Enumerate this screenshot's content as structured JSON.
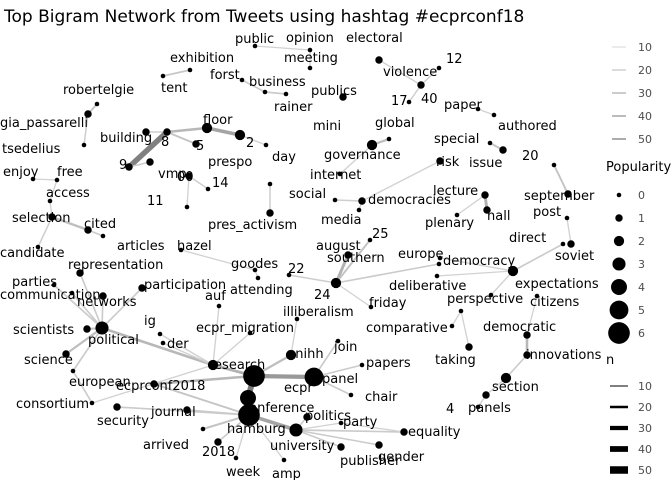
{
  "chart_data": {
    "type": "network",
    "title": "Top Bigram Network from Tweets using hashtag #ecprconf18",
    "legend_edge_alpha": {
      "values": [
        "10",
        "20",
        "30",
        "40",
        "50"
      ]
    },
    "legend_popularity": {
      "title": "Popularity",
      "values": [
        "0",
        "1",
        "2",
        "3",
        "4",
        "5",
        "6"
      ]
    },
    "legend_n": {
      "title": "n",
      "values": [
        "10",
        "20",
        "30",
        "40",
        "50"
      ]
    },
    "nodes": [
      {
        "id": "public",
        "pop": 0
      },
      {
        "id": "opinion",
        "pop": 0
      },
      {
        "id": "electoral",
        "pop": 0
      },
      {
        "id": "meeting",
        "pop": 0
      },
      {
        "id": "violence",
        "pop": 1
      },
      {
        "id": "exhibition",
        "pop": 0
      },
      {
        "id": "tent",
        "pop": 0
      },
      {
        "id": "forst",
        "pop": 0
      },
      {
        "id": "business",
        "pop": 0
      },
      {
        "id": "12",
        "pop": 0
      },
      {
        "id": "rainer",
        "pop": 0
      },
      {
        "id": "robertelgie",
        "pop": 0
      },
      {
        "id": "publics",
        "pop": 1
      },
      {
        "id": "17",
        "pop": 0
      },
      {
        "id": "40",
        "pop": 1
      },
      {
        "id": "paper",
        "pop": 0
      },
      {
        "id": "gia_passarelli",
        "pop": 1
      },
      {
        "id": "mini",
        "pop": 0
      },
      {
        "id": "authored",
        "pop": 0
      },
      {
        "id": "global",
        "pop": 0
      },
      {
        "id": "floor",
        "pop": 2
      },
      {
        "id": "tsedelius",
        "pop": 0
      },
      {
        "id": "building",
        "pop": 1
      },
      {
        "id": "8",
        "pop": 1
      },
      {
        "id": "2",
        "pop": 2
      },
      {
        "id": "special",
        "pop": 0
      },
      {
        "id": "5",
        "pop": 1
      },
      {
        "id": "day",
        "pop": 0
      },
      {
        "id": "9",
        "pop": 1
      },
      {
        "id": "governance",
        "pop": 2
      },
      {
        "id": "issue",
        "pop": 1
      },
      {
        "id": "vmp",
        "pop": 1
      },
      {
        "id": "risk",
        "pop": 1
      },
      {
        "id": "20",
        "pop": 0
      },
      {
        "id": "enjoy",
        "pop": 0
      },
      {
        "id": "free",
        "pop": 0
      },
      {
        "id": "internet",
        "pop": 0
      },
      {
        "id": "00",
        "pop": 1
      },
      {
        "id": "14",
        "pop": 0
      },
      {
        "id": "prespo",
        "pop": 0
      },
      {
        "id": "september",
        "pop": 1
      },
      {
        "id": "access",
        "pop": 0
      },
      {
        "id": "social",
        "pop": 0
      },
      {
        "id": "democracies",
        "pop": 1
      },
      {
        "id": "lecture",
        "pop": 1
      },
      {
        "id": "11",
        "pop": 0
      },
      {
        "id": "media",
        "pop": 0
      },
      {
        "id": "hall",
        "pop": 1
      },
      {
        "id": "post",
        "pop": 0
      },
      {
        "id": "selection",
        "pop": 1
      },
      {
        "id": "cited",
        "pop": 1
      },
      {
        "id": "pres_activism",
        "pop": 1
      },
      {
        "id": "plenary",
        "pop": 0
      },
      {
        "id": "25",
        "pop": 0
      },
      {
        "id": "soviet",
        "pop": 1
      },
      {
        "id": "articles",
        "pop": 0
      },
      {
        "id": "direct",
        "pop": 0
      },
      {
        "id": "candidate",
        "pop": 0
      },
      {
        "id": "hazel",
        "pop": 0
      },
      {
        "id": "august",
        "pop": 1
      },
      {
        "id": "europe",
        "pop": 0
      },
      {
        "id": "democracy",
        "pop": 2
      },
      {
        "id": "goodes",
        "pop": 0
      },
      {
        "id": "22",
        "pop": 0
      },
      {
        "id": "southern",
        "pop": 0
      },
      {
        "id": "representation",
        "pop": 1
      },
      {
        "id": "attending",
        "pop": 0
      },
      {
        "id": "24",
        "pop": 2
      },
      {
        "id": "deliberative",
        "pop": 0
      },
      {
        "id": "expectations",
        "pop": 0
      },
      {
        "id": "parties",
        "pop": 0
      },
      {
        "id": "participation",
        "pop": 1
      },
      {
        "id": "friday",
        "pop": 0
      },
      {
        "id": "communication",
        "pop": 0
      },
      {
        "id": "networks",
        "pop": 1
      },
      {
        "id": "auf",
        "pop": 0
      },
      {
        "id": "citizens",
        "pop": 0
      },
      {
        "id": "illiberalism",
        "pop": 0
      },
      {
        "id": "perspective",
        "pop": 0
      },
      {
        "id": "scientists",
        "pop": 1
      },
      {
        "id": "political",
        "pop": 3
      },
      {
        "id": "comparative",
        "pop": 0
      },
      {
        "id": "ig",
        "pop": 0
      },
      {
        "id": "ecpr_migration",
        "pop": 0
      },
      {
        "id": "der",
        "pop": 0
      },
      {
        "id": "democratic",
        "pop": 1
      },
      {
        "id": "join",
        "pop": 0
      },
      {
        "id": "science",
        "pop": 1
      },
      {
        "id": "research",
        "pop": 2
      },
      {
        "id": "unihh",
        "pop": 2
      },
      {
        "id": "taking",
        "pop": 1
      },
      {
        "id": "innovations",
        "pop": 1
      },
      {
        "id": "papers",
        "pop": 0
      },
      {
        "id": "european",
        "pop": 0
      },
      {
        "id": "ecpr",
        "pop": 6
      },
      {
        "id": "panel",
        "pop": 5
      },
      {
        "id": "ecprconf2018",
        "pop": 1
      },
      {
        "id": "section",
        "pop": 2
      },
      {
        "id": "consortium",
        "pop": 0
      },
      {
        "id": "conference",
        "pop": 4
      },
      {
        "id": "chair",
        "pop": 0
      },
      {
        "id": "4",
        "pop": 0
      },
      {
        "id": "panels",
        "pop": 1
      },
      {
        "id": "security",
        "pop": 1
      },
      {
        "id": "journal",
        "pop": 1
      },
      {
        "id": "politics",
        "pop": 1
      },
      {
        "id": "hamburg",
        "pop": 6
      },
      {
        "id": "party",
        "pop": 0
      },
      {
        "id": "arrived",
        "pop": 0
      },
      {
        "id": "university",
        "pop": 3
      },
      {
        "id": "equality",
        "pop": 1
      },
      {
        "id": "2018",
        "pop": 1
      },
      {
        "id": "gender",
        "pop": 1
      },
      {
        "id": "publisher",
        "pop": 1
      },
      {
        "id": "week",
        "pop": 0
      },
      {
        "id": "amp",
        "pop": 0
      }
    ],
    "edges": [
      {
        "from": "public",
        "to": "opinion",
        "n": 12
      },
      {
        "from": "electoral",
        "to": "violence",
        "n": 14
      },
      {
        "from": "meeting",
        "to": "opinion",
        "n": 12
      },
      {
        "from": "exhibition",
        "to": "tent",
        "n": 15
      },
      {
        "from": "forst",
        "to": "business",
        "n": 14
      },
      {
        "from": "business",
        "to": "rainer",
        "n": 14
      },
      {
        "from": "12",
        "to": "40",
        "n": 13
      },
      {
        "from": "17",
        "to": "40",
        "n": 13
      },
      {
        "from": "violence",
        "to": "40",
        "n": 12
      },
      {
        "from": "robertelgie",
        "to": "gia_passarelli",
        "n": 16
      },
      {
        "from": "gia_passarelli",
        "to": "tsedelius",
        "n": 13
      },
      {
        "from": "publics",
        "to": "mini",
        "n": 13
      },
      {
        "from": "paper",
        "to": "authored",
        "n": 12
      },
      {
        "from": "global",
        "to": "governance",
        "n": 18
      },
      {
        "from": "governance",
        "to": "internet",
        "n": 12
      },
      {
        "from": "building",
        "to": "8",
        "n": 13
      },
      {
        "from": "8",
        "to": "floor",
        "n": 20
      },
      {
        "from": "floor",
        "to": "2",
        "n": 26
      },
      {
        "from": "8",
        "to": "5",
        "n": 16
      },
      {
        "from": "9",
        "to": "8",
        "n": 38
      },
      {
        "from": "2",
        "to": "day",
        "n": 12
      },
      {
        "from": "9",
        "to": "vmp",
        "n": 13
      },
      {
        "from": "special",
        "to": "issue",
        "n": 16
      },
      {
        "from": "risk",
        "to": "democracies",
        "n": 12
      },
      {
        "from": "social",
        "to": "democracies",
        "n": 13
      },
      {
        "from": "democracies",
        "to": "media",
        "n": 12
      },
      {
        "from": "20",
        "to": "september",
        "n": 16
      },
      {
        "from": "enjoy",
        "to": "free",
        "n": 12
      },
      {
        "from": "free",
        "to": "access",
        "n": 12
      },
      {
        "from": "00",
        "to": "14",
        "n": 13
      },
      {
        "from": "00",
        "to": "11",
        "n": 12
      },
      {
        "from": "prespo",
        "to": "pres_activism",
        "n": 13
      },
      {
        "from": "lecture",
        "to": "hall",
        "n": 22
      },
      {
        "from": "lecture",
        "to": "plenary",
        "n": 12
      },
      {
        "from": "post",
        "to": "soviet",
        "n": 12
      },
      {
        "from": "access",
        "to": "selection",
        "n": 12
      },
      {
        "from": "selection",
        "to": "cited",
        "n": 18
      },
      {
        "from": "cited",
        "to": "articles",
        "n": 14
      },
      {
        "from": "selection",
        "to": "candidate",
        "n": 13
      },
      {
        "from": "direct",
        "to": "democracy",
        "n": 14
      },
      {
        "from": "europe",
        "to": "democracy",
        "n": 12
      },
      {
        "from": "democracy",
        "to": "deliberative",
        "n": 12
      },
      {
        "from": "democracy",
        "to": "expectations",
        "n": 12
      },
      {
        "from": "hazel",
        "to": "goodes",
        "n": 12
      },
      {
        "from": "goodes",
        "to": "attending",
        "n": 12
      },
      {
        "from": "22",
        "to": "24",
        "n": 13
      },
      {
        "from": "august",
        "to": "24",
        "n": 22
      },
      {
        "from": "25",
        "to": "24",
        "n": 16
      },
      {
        "from": "southern",
        "to": "24",
        "n": 14
      },
      {
        "from": "24",
        "to": "friday",
        "n": 12
      },
      {
        "from": "representation",
        "to": "political",
        "n": 14
      },
      {
        "from": "parties",
        "to": "political",
        "n": 14
      },
      {
        "from": "communication",
        "to": "political",
        "n": 14
      },
      {
        "from": "networks",
        "to": "political",
        "n": 14
      },
      {
        "from": "participation",
        "to": "political",
        "n": 14
      },
      {
        "from": "scientists",
        "to": "political",
        "n": 16
      },
      {
        "from": "political",
        "to": "science",
        "n": 18
      },
      {
        "from": "european",
        "to": "political",
        "n": 14
      },
      {
        "from": "political",
        "to": "research",
        "n": 20
      },
      {
        "from": "european",
        "to": "consortium",
        "n": 14
      },
      {
        "from": "citizens",
        "to": "democratic",
        "n": 12
      },
      {
        "from": "perspective",
        "to": "comparative",
        "n": 12
      },
      {
        "from": "perspective",
        "to": "taking",
        "n": 12
      },
      {
        "from": "democratic",
        "to": "innovations",
        "n": 20
      },
      {
        "from": "innovations",
        "to": "section",
        "n": 14
      },
      {
        "from": "section",
        "to": "panels",
        "n": 12
      },
      {
        "from": "4",
        "to": "panels",
        "n": 12
      },
      {
        "from": "auf",
        "to": "research",
        "n": 12
      },
      {
        "from": "ig",
        "to": "research",
        "n": 12
      },
      {
        "from": "der",
        "to": "research",
        "n": 12
      },
      {
        "from": "ecpr_migration",
        "to": "research",
        "n": 12
      },
      {
        "from": "illiberalism",
        "to": "unihh",
        "n": 12
      },
      {
        "from": "research",
        "to": "ecpr",
        "n": 22
      },
      {
        "from": "unihh",
        "to": "ecpr",
        "n": 18
      },
      {
        "from": "join",
        "to": "panel",
        "n": 14
      },
      {
        "from": "papers",
        "to": "panel",
        "n": 14
      },
      {
        "from": "panel",
        "to": "chair",
        "n": 14
      },
      {
        "from": "ecpr",
        "to": "panel",
        "n": 30
      },
      {
        "from": "ecprconf2018",
        "to": "ecpr",
        "n": 20
      },
      {
        "from": "ecpr",
        "to": "conference",
        "n": 40
      },
      {
        "from": "conference",
        "to": "hamburg",
        "n": 50
      },
      {
        "from": "journal",
        "to": "hamburg",
        "n": 14
      },
      {
        "from": "security",
        "to": "hamburg",
        "n": 14
      },
      {
        "from": "arrived",
        "to": "hamburg",
        "n": 16
      },
      {
        "from": "2018",
        "to": "hamburg",
        "n": 14
      },
      {
        "from": "week",
        "to": "hamburg",
        "n": 12
      },
      {
        "from": "amp",
        "to": "hamburg",
        "n": 12
      },
      {
        "from": "hamburg",
        "to": "university",
        "n": 26
      },
      {
        "from": "university",
        "to": "politics",
        "n": 14
      },
      {
        "from": "university",
        "to": "party",
        "n": 12
      },
      {
        "from": "university",
        "to": "equality",
        "n": 14
      },
      {
        "from": "university",
        "to": "gender",
        "n": 14
      },
      {
        "from": "university",
        "to": "publisher",
        "n": 14
      },
      {
        "from": "party",
        "to": "equality",
        "n": 12
      },
      {
        "from": "ecprconf2018",
        "to": "hamburg",
        "n": 16
      },
      {
        "from": "consortium",
        "to": "research",
        "n": 12
      }
    ]
  }
}
